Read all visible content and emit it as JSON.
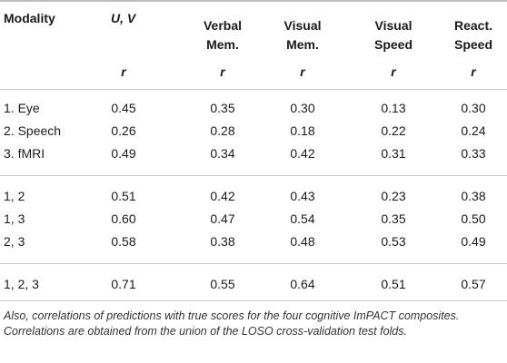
{
  "header": {
    "modality": "Modality",
    "uv": "U, V",
    "verbal_line1": "Verbal",
    "verbal_line2": "Mem.",
    "visual_mem_line1": "Visual",
    "visual_mem_line2": "Mem.",
    "visual_speed_line1": "Visual",
    "visual_speed_line2": "Speed",
    "react_line1": "React.",
    "react_line2": "Speed",
    "r": "r"
  },
  "rows": [
    {
      "modality": "1. Eye",
      "uv": "0.45",
      "verbal": "0.35",
      "visual_mem": "0.30",
      "visual_speed": "0.13",
      "react_speed": "0.30"
    },
    {
      "modality": "2. Speech",
      "uv": "0.26",
      "verbal": "0.28",
      "visual_mem": "0.18",
      "visual_speed": "0.22",
      "react_speed": "0.24"
    },
    {
      "modality": "3. fMRI",
      "uv": "0.49",
      "verbal": "0.34",
      "visual_mem": "0.42",
      "visual_speed": "0.31",
      "react_speed": "0.33"
    },
    {
      "modality": "1, 2",
      "uv": "0.51",
      "verbal": "0.42",
      "visual_mem": "0.43",
      "visual_speed": "0.23",
      "react_speed": "0.38"
    },
    {
      "modality": "1, 3",
      "uv": "0.60",
      "verbal": "0.47",
      "visual_mem": "0.54",
      "visual_speed": "0.35",
      "react_speed": "0.50"
    },
    {
      "modality": "2, 3",
      "uv": "0.58",
      "verbal": "0.38",
      "visual_mem": "0.48",
      "visual_speed": "0.53",
      "react_speed": "0.49"
    },
    {
      "modality": "1, 2, 3",
      "uv": "0.71",
      "verbal": "0.55",
      "visual_mem": "0.64",
      "visual_speed": "0.51",
      "react_speed": "0.57"
    }
  ],
  "caption": "Also, correlations of predictions with true scores for the four cognitive ImPACT composites. Correlations are obtained from the union of the LOSO cross-validation test folds."
}
